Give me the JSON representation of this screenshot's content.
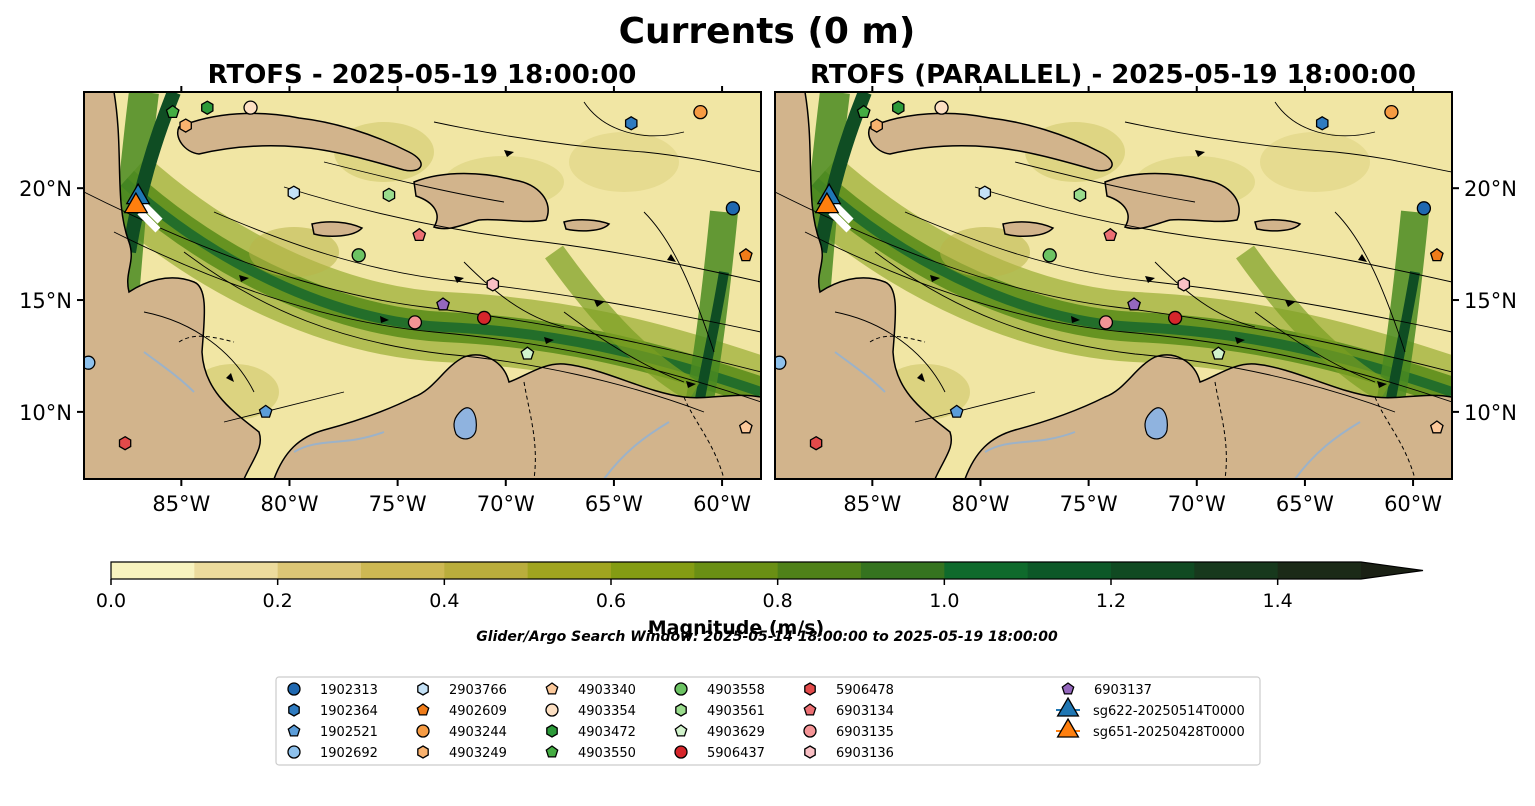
{
  "title": "Currents (0 m)",
  "panels": [
    {
      "title": "RTOFS - 2025-05-19 18:00:00"
    },
    {
      "title": "RTOFS (PARALLEL) - 2025-05-19 18:00:00"
    }
  ],
  "lon_ticks": [
    "85°W",
    "80°W",
    "75°W",
    "70°W",
    "65°W",
    "60°W"
  ],
  "lat_ticks": [
    "20°N",
    "15°N",
    "10°N"
  ],
  "colorbar": {
    "label": "Magnitude (m/s)",
    "ticks": [
      "0.0",
      "0.2",
      "0.4",
      "0.6",
      "0.8",
      "1.0",
      "1.2",
      "1.4"
    ],
    "colors": [
      "#f8f3bf",
      "#ecdb9d",
      "#dcc676",
      "#cdb853",
      "#b9ad3c",
      "#a0a41f",
      "#849c13",
      "#6a8f14",
      "#4f8119",
      "#35731f",
      "#0f6a2c",
      "#0d5828",
      "#104a22",
      "#17391d",
      "#1b2a17"
    ],
    "extend_color": "#1a2014"
  },
  "search_window": "Glider/Argo Search Window: 2025-05-14 18:00:00 to 2025-05-19 18:00:00",
  "legend": [
    {
      "label": "1902313",
      "shape": "circle",
      "color": "#1f68b0"
    },
    {
      "label": "1902364",
      "shape": "hexagon",
      "color": "#2f7bc0"
    },
    {
      "label": "1902521",
      "shape": "pentagon",
      "color": "#5b9dd9"
    },
    {
      "label": "1902692",
      "shape": "circle",
      "color": "#8ec1ec"
    },
    {
      "label": "2903766",
      "shape": "hexagon",
      "color": "#c4e1f6"
    },
    {
      "label": "4902609",
      "shape": "pentagon",
      "color": "#f07c19"
    },
    {
      "label": "4903244",
      "shape": "circle",
      "color": "#f69b43"
    },
    {
      "label": "4903249",
      "shape": "hexagon",
      "color": "#f9b26f"
    },
    {
      "label": "4903340",
      "shape": "pentagon",
      "color": "#fcc99b"
    },
    {
      "label": "4903354",
      "shape": "circle",
      "color": "#fde0c3"
    },
    {
      "label": "4903472",
      "shape": "hexagon",
      "color": "#2c9a39"
    },
    {
      "label": "4903550",
      "shape": "pentagon",
      "color": "#45ad43"
    },
    {
      "label": "4903558",
      "shape": "circle",
      "color": "#6cc363"
    },
    {
      "label": "4903561",
      "shape": "hexagon",
      "color": "#9adc8d"
    },
    {
      "label": "4903629",
      "shape": "pentagon",
      "color": "#d2f3cc"
    },
    {
      "label": "5906437",
      "shape": "circle",
      "color": "#d6262b"
    },
    {
      "label": "5906478",
      "shape": "hexagon",
      "color": "#e34a4a"
    },
    {
      "label": "6903134",
      "shape": "pentagon",
      "color": "#ec6f73"
    },
    {
      "label": "6903135",
      "shape": "circle",
      "color": "#f49496"
    },
    {
      "label": "6903136",
      "shape": "hexagon",
      "color": "#f9bfc4"
    },
    {
      "label": "6903137",
      "shape": "pentagon",
      "color": "#9467bd"
    },
    {
      "label": "sg622-20250514T0000",
      "shape": "triangle",
      "color": "#1f77b4"
    },
    {
      "label": "sg651-20250428T0000",
      "shape": "triangle",
      "color": "#ff7f0e"
    }
  ],
  "chart_data": {
    "type": "map",
    "variable": "Surface current magnitude (m/s)",
    "lon_range": [
      -89.5,
      -58.2
    ],
    "lat_range": [
      7.0,
      24.3
    ],
    "color_range": [
      0.0,
      1.5
    ],
    "panels": [
      "RTOFS",
      "RTOFS (PARALLEL)"
    ],
    "floats": [
      {
        "id": "1902313",
        "lon": -59.5,
        "lat": 19.1
      },
      {
        "id": "1902364",
        "lon": -64.2,
        "lat": 22.9
      },
      {
        "id": "1902521",
        "lon": -81.1,
        "lat": 10.0
      },
      {
        "id": "1902692",
        "lon": -89.3,
        "lat": 12.2
      },
      {
        "id": "2903766",
        "lon": -79.8,
        "lat": 19.8
      },
      {
        "id": "4902609",
        "lon": -58.9,
        "lat": 17.0
      },
      {
        "id": "4903244",
        "lon": -61.0,
        "lat": 23.4
      },
      {
        "id": "4903249",
        "lon": -84.8,
        "lat": 22.8
      },
      {
        "id": "4903340",
        "lon": -58.9,
        "lat": 9.3
      },
      {
        "id": "4903354",
        "lon": -81.8,
        "lat": 23.6
      },
      {
        "id": "4903472",
        "lon": -83.8,
        "lat": 23.6
      },
      {
        "id": "4903550",
        "lon": -85.4,
        "lat": 23.4
      },
      {
        "id": "4903558",
        "lon": -76.8,
        "lat": 17.0
      },
      {
        "id": "4903561",
        "lon": -75.4,
        "lat": 19.7
      },
      {
        "id": "4903629",
        "lon": -69.0,
        "lat": 12.6
      },
      {
        "id": "5906437",
        "lon": -71.0,
        "lat": 14.2
      },
      {
        "id": "5906478",
        "lon": -87.6,
        "lat": 8.6
      },
      {
        "id": "6903134",
        "lon": -74.0,
        "lat": 17.9
      },
      {
        "id": "6903135",
        "lon": -74.2,
        "lat": 14.0
      },
      {
        "id": "6903136",
        "lon": -70.6,
        "lat": 15.7
      },
      {
        "id": "6903137",
        "lon": -72.9,
        "lat": 14.8
      }
    ],
    "gliders": [
      {
        "id": "sg622-20250514T0000",
        "lon": -87.0,
        "lat": 19.6
      },
      {
        "id": "sg651-20250428T0000",
        "lon": -87.1,
        "lat": 19.2
      }
    ]
  }
}
